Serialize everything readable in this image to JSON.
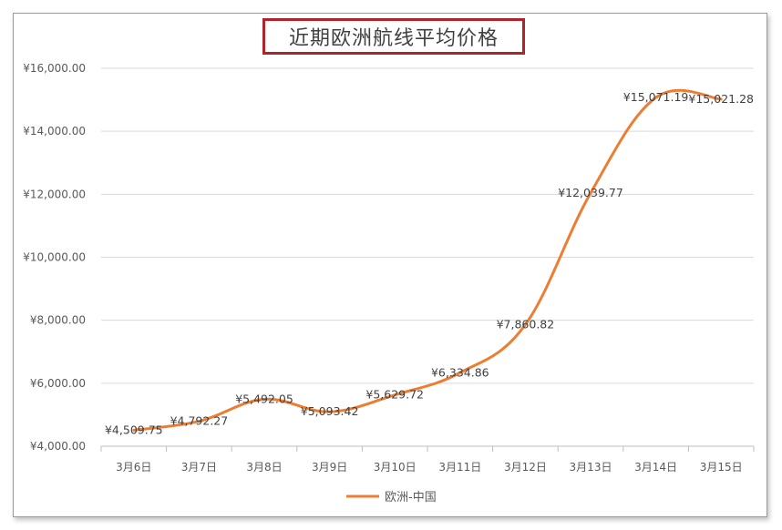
{
  "chart_data": {
    "type": "line",
    "title": "近期欧洲航线平均价格",
    "categories": [
      "3月6日",
      "3月7日",
      "3月8日",
      "3月9日",
      "3月10日",
      "3月11日",
      "3月12日",
      "3月13日",
      "3月14日",
      "3月15日"
    ],
    "series": [
      {
        "name": "欧洲-中国",
        "color": "#ed7d31",
        "values": [
          4509.75,
          4792.27,
          5492.05,
          5093.42,
          5629.72,
          6334.86,
          7860.82,
          12039.77,
          15071.19,
          15021.28
        ],
        "labels": [
          "¥4,509.75",
          "¥4,792.27",
          "¥5,492.05",
          "¥5,093.42",
          "¥5,629.72",
          "¥6,334.86",
          "¥7,860.82",
          "¥12,039.77",
          "¥15,071.19",
          "¥15,021.28"
        ]
      }
    ],
    "ylim": [
      4000,
      16000
    ],
    "yticks": [
      4000,
      6000,
      8000,
      10000,
      12000,
      14000,
      16000
    ],
    "ytick_labels": [
      "¥4,000.00",
      "¥6,000.00",
      "¥8,000.00",
      "¥10,000.00",
      "¥12,000.00",
      "¥14,000.00",
      "¥16,000.00"
    ],
    "grid": true,
    "legend_position": "bottom"
  }
}
